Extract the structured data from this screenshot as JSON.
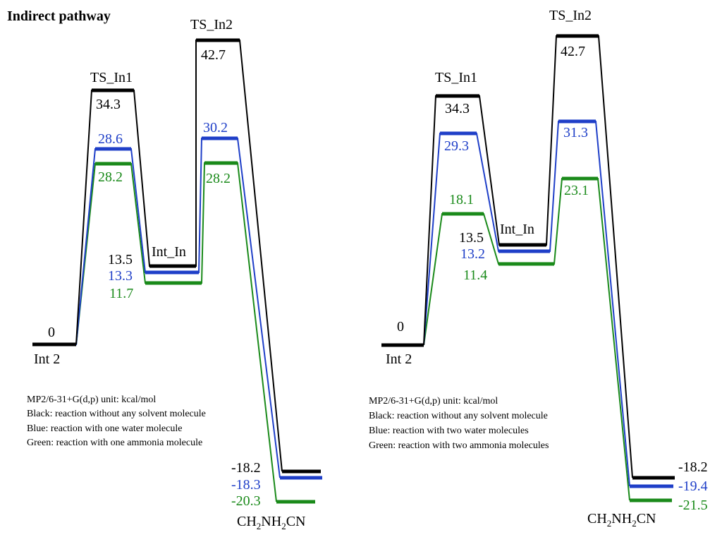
{
  "title": "Indirect pathway",
  "colors": {
    "black": "#000000",
    "blue": "#1f3fc8",
    "green": "#1a8a1a"
  },
  "panels": [
    {
      "state_labels": {
        "start": "Int 2",
        "ts1": "TS_In1",
        "int": "Int_In",
        "ts2": "TS_In2"
      },
      "product_label": "CH₂NH₂CN",
      "legend": {
        "method": "MP2/6-31+G(d,p)  unit: kcal/mol",
        "black": "Black: reaction without any solvent molecule",
        "blue": "Blue: reaction with one water molecule",
        "green": "Green: reaction with one ammonia molecule"
      },
      "series": [
        {
          "color": "black",
          "values": [
            "0",
            "34.3",
            "13.5",
            "42.7",
            "-18.2"
          ]
        },
        {
          "color": "blue",
          "values": [
            "0",
            "28.6",
            "13.3",
            "30.2",
            "-18.3"
          ]
        },
        {
          "color": "green",
          "values": [
            "0",
            "28.2",
            "11.7",
            "28.2",
            "-20.3"
          ]
        }
      ]
    },
    {
      "state_labels": {
        "start": "Int 2",
        "ts1": "TS_In1",
        "int": "Int_In",
        "ts2": "TS_In2"
      },
      "product_label": "CH₂NH₂CN",
      "legend": {
        "method": "MP2/6-31+G(d,p)  unit: kcal/mol",
        "black": "Black: reaction without any solvent molecule",
        "blue": "Blue: reaction with two water molecules",
        "green": "Green: reaction with two ammonia molecules"
      },
      "series": [
        {
          "color": "black",
          "values": [
            "0",
            "34.3",
            "13.5",
            "42.7",
            "-18.2"
          ]
        },
        {
          "color": "blue",
          "values": [
            "0",
            "29.3",
            "13.2",
            "31.3",
            "-19.4"
          ]
        },
        {
          "color": "green",
          "values": [
            "0",
            "18.1",
            "11.4",
            "23.1",
            "-21.5"
          ]
        }
      ]
    }
  ]
}
